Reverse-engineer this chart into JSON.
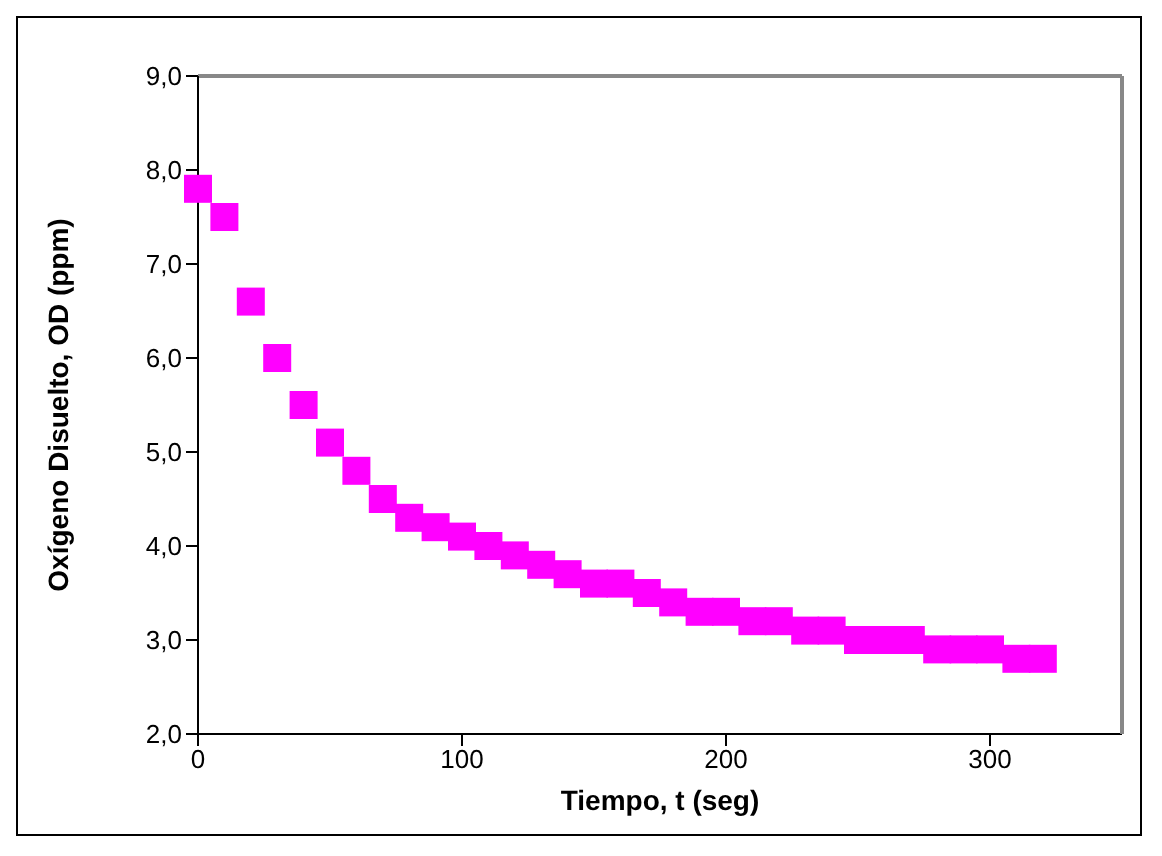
{
  "chart_data": {
    "type": "scatter",
    "xlabel": "Tiempo, t (seg)",
    "ylabel": "Oxígeno Disuelto, OD (ppm)",
    "x": [
      0,
      10,
      20,
      30,
      40,
      50,
      60,
      70,
      80,
      90,
      100,
      110,
      120,
      130,
      140,
      150,
      160,
      170,
      180,
      190,
      200,
      210,
      220,
      230,
      240,
      250,
      260,
      270,
      280,
      290,
      300,
      310,
      320
    ],
    "series": [
      {
        "color": "#ff00ff",
        "values": [
          7.8,
          7.5,
          6.6,
          6.0,
          5.5,
          5.1,
          4.8,
          4.5,
          4.3,
          4.2,
          4.1,
          4.0,
          3.9,
          3.8,
          3.7,
          3.6,
          3.6,
          3.5,
          3.4,
          3.3,
          3.3,
          3.2,
          3.2,
          3.1,
          3.1,
          3.0,
          3.0,
          3.0,
          2.9,
          2.9,
          2.9,
          2.8,
          2.8
        ]
      }
    ],
    "xlim": [
      0,
      350
    ],
    "xticks": [
      0,
      100,
      200,
      300
    ],
    "ylim": [
      2,
      9
    ],
    "yticks": [
      {
        "value": 2,
        "label": "2,0"
      },
      {
        "value": 3,
        "label": "3,0"
      },
      {
        "value": 4,
        "label": "4,0"
      },
      {
        "value": 5,
        "label": "5,0"
      },
      {
        "value": 6,
        "label": "6,0"
      },
      {
        "value": 7,
        "label": "7,0"
      },
      {
        "value": 8,
        "label": "8,0"
      },
      {
        "value": 9,
        "label": "9,0"
      }
    ],
    "legend": false,
    "marker": "square"
  }
}
